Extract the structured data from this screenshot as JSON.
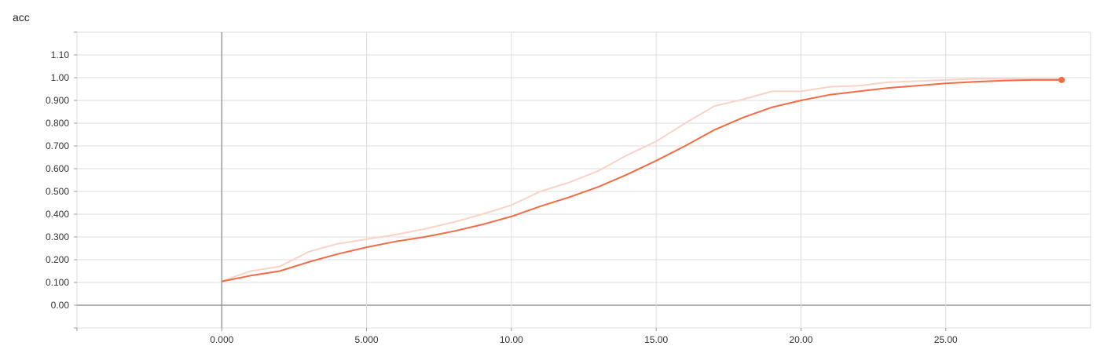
{
  "chart_data": {
    "type": "line",
    "title": "acc",
    "xlabel": "",
    "ylabel": "",
    "xlim": [
      -5.0,
      30.0
    ],
    "ylim": [
      -0.1,
      1.2
    ],
    "grid": true,
    "x_ticks": [
      0,
      5,
      10,
      15,
      20,
      25
    ],
    "x_tick_labels": [
      "0.000",
      "5.000",
      "10.00",
      "15.00",
      "20.00",
      "25.00"
    ],
    "y_ticks": [
      0,
      0.1,
      0.2,
      0.3,
      0.4,
      0.5,
      0.6,
      0.7,
      0.8,
      0.9,
      1.0,
      1.1
    ],
    "y_tick_labels": [
      "0.00",
      "0.100",
      "0.200",
      "0.300",
      "0.400",
      "0.500",
      "0.600",
      "0.700",
      "0.800",
      "0.900",
      "1.00",
      "1.10"
    ],
    "colors": {
      "smoothed": "#f26b45",
      "raw": "#fbd3c5",
      "grid": "#dddddd",
      "zero_axis": "#999999"
    },
    "series": [
      {
        "role": "raw",
        "x": [
          0,
          1,
          2,
          3,
          4,
          5,
          6,
          7,
          8,
          9,
          10,
          11,
          12,
          13,
          14,
          15,
          16,
          17,
          18,
          19,
          20,
          21,
          22,
          23,
          24,
          25,
          26,
          27,
          28,
          29
        ],
        "y": [
          0.105,
          0.15,
          0.17,
          0.235,
          0.27,
          0.29,
          0.31,
          0.335,
          0.365,
          0.4,
          0.44,
          0.5,
          0.54,
          0.59,
          0.66,
          0.72,
          0.8,
          0.875,
          0.905,
          0.94,
          0.94,
          0.96,
          0.965,
          0.98,
          0.985,
          0.99,
          0.995,
          0.995,
          0.995,
          0.995
        ]
      },
      {
        "role": "smoothed",
        "x": [
          0,
          1,
          2,
          3,
          4,
          5,
          6,
          7,
          8,
          9,
          10,
          11,
          12,
          13,
          14,
          15,
          16,
          17,
          18,
          19,
          20,
          21,
          22,
          23,
          24,
          25,
          26,
          27,
          28,
          29
        ],
        "y": [
          0.105,
          0.13,
          0.15,
          0.19,
          0.225,
          0.255,
          0.28,
          0.3,
          0.325,
          0.355,
          0.39,
          0.435,
          0.475,
          0.52,
          0.575,
          0.635,
          0.7,
          0.77,
          0.825,
          0.87,
          0.9,
          0.925,
          0.94,
          0.955,
          0.965,
          0.975,
          0.982,
          0.987,
          0.99,
          0.99
        ]
      }
    ]
  }
}
